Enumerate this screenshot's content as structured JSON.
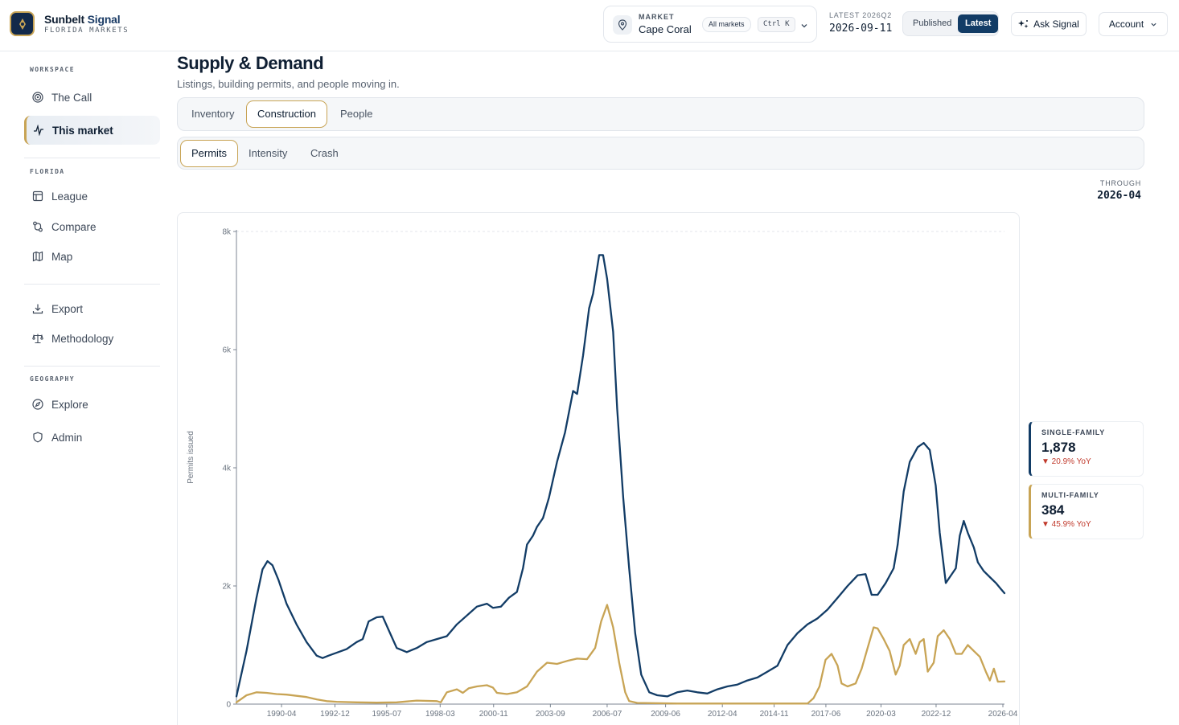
{
  "brand": {
    "name_a": "Sunbelt",
    "name_b": "Signal",
    "sub": "FLORIDA MARKETS"
  },
  "market": {
    "label": "MARKET",
    "value": "Cape Coral",
    "all_markets": "All markets",
    "shortcut": "Ctrl K"
  },
  "latest": {
    "label": "LATEST 2026Q2",
    "value": "2026-09-11"
  },
  "version_toggle": {
    "published": "Published",
    "latest": "Latest",
    "selected": "Latest"
  },
  "ask_label": "Ask Signal",
  "account_label": "Account",
  "sidebar": {
    "sections": [
      {
        "label": "WORKSPACE",
        "items": [
          {
            "label": "The Call",
            "icon": "target-icon"
          },
          {
            "label": "This market",
            "icon": "pulse-icon",
            "active": true
          }
        ]
      },
      {
        "label": "FLORIDA",
        "items": [
          {
            "label": "League",
            "icon": "table-icon"
          },
          {
            "label": "Compare",
            "icon": "compare-icon"
          },
          {
            "label": "Map",
            "icon": "map-icon"
          }
        ]
      },
      {
        "label": "",
        "items": [
          {
            "label": "Export",
            "icon": "download-icon"
          },
          {
            "label": "Methodology",
            "icon": "scale-icon"
          }
        ]
      },
      {
        "label": "GEOGRAPHY",
        "items": [
          {
            "label": "Explore",
            "icon": "compass-icon"
          },
          {
            "label": "Admin",
            "icon": "shield-icon"
          }
        ]
      }
    ]
  },
  "page": {
    "title": "Supply & Demand",
    "subtitle": "Listings, building permits, and people moving in."
  },
  "tabs": [
    "Inventory",
    "Construction",
    "People"
  ],
  "active_tab": "Construction",
  "subtabs": [
    "Permits",
    "Intensity",
    "Crash"
  ],
  "active_subtab": "Permits",
  "through": {
    "label": "THROUGH",
    "value": "2026-04"
  },
  "kpis": [
    {
      "label": "SINGLE-FAMILY",
      "value": "1,878",
      "change": "▼ 20.9% YoY",
      "color": "#123c66"
    },
    {
      "label": "MULTI-FAMILY",
      "value": "384",
      "change": "▼ 45.9% YoY",
      "color": "#c8a455"
    }
  ],
  "chart_data": {
    "type": "line",
    "ylabel": "Permits issued",
    "xlabel": "",
    "ylim": [
      0,
      8000
    ],
    "y_ticks": [
      "0",
      "2k",
      "4k",
      "6k",
      "8k"
    ],
    "x_range": [
      1988.0,
      2026.33
    ],
    "x_ticks": [
      "1990-04",
      "1992-12",
      "1995-07",
      "1998-03",
      "2000-11",
      "2003-09",
      "2006-07",
      "2009-06",
      "2012-04",
      "2014-11",
      "2017-06",
      "2020-03",
      "2022-12",
      "2026-04"
    ],
    "grid": "top-line-only",
    "series": [
      {
        "name": "Single-family",
        "color": "#123c66",
        "points": [
          [
            1988.0,
            130
          ],
          [
            1988.5,
            900
          ],
          [
            1989.0,
            1800
          ],
          [
            1989.3,
            2280
          ],
          [
            1989.55,
            2420
          ],
          [
            1989.8,
            2350
          ],
          [
            1990.1,
            2100
          ],
          [
            1990.5,
            1700
          ],
          [
            1991.0,
            1350
          ],
          [
            1991.5,
            1050
          ],
          [
            1992.0,
            820
          ],
          [
            1992.3,
            780
          ],
          [
            1992.6,
            820
          ],
          [
            1993.0,
            870
          ],
          [
            1993.5,
            930
          ],
          [
            1994.0,
            1050
          ],
          [
            1994.3,
            1100
          ],
          [
            1994.6,
            1400
          ],
          [
            1995.0,
            1470
          ],
          [
            1995.3,
            1480
          ],
          [
            1995.6,
            1250
          ],
          [
            1996.0,
            950
          ],
          [
            1996.5,
            880
          ],
          [
            1997.0,
            950
          ],
          [
            1997.5,
            1050
          ],
          [
            1998.0,
            1100
          ],
          [
            1998.5,
            1150
          ],
          [
            1999.0,
            1350
          ],
          [
            1999.5,
            1500
          ],
          [
            2000.0,
            1650
          ],
          [
            2000.5,
            1700
          ],
          [
            2000.8,
            1630
          ],
          [
            2001.2,
            1650
          ],
          [
            2001.6,
            1800
          ],
          [
            2002.0,
            1900
          ],
          [
            2002.3,
            2300
          ],
          [
            2002.5,
            2700
          ],
          [
            2002.8,
            2850
          ],
          [
            2003.0,
            3000
          ],
          [
            2003.3,
            3150
          ],
          [
            2003.6,
            3500
          ],
          [
            2004.0,
            4100
          ],
          [
            2004.4,
            4600
          ],
          [
            2004.8,
            5300
          ],
          [
            2005.0,
            5250
          ],
          [
            2005.3,
            5900
          ],
          [
            2005.6,
            6700
          ],
          [
            2005.8,
            6950
          ],
          [
            2006.1,
            7600
          ],
          [
            2006.3,
            7600
          ],
          [
            2006.5,
            7200
          ],
          [
            2006.8,
            6300
          ],
          [
            2007.0,
            5000
          ],
          [
            2007.3,
            3500
          ],
          [
            2007.6,
            2300
          ],
          [
            2007.9,
            1200
          ],
          [
            2008.2,
            500
          ],
          [
            2008.6,
            200
          ],
          [
            2009.0,
            150
          ],
          [
            2009.5,
            130
          ],
          [
            2010.0,
            200
          ],
          [
            2010.5,
            230
          ],
          [
            2011.0,
            200
          ],
          [
            2011.5,
            180
          ],
          [
            2012.0,
            250
          ],
          [
            2012.5,
            300
          ],
          [
            2013.0,
            330
          ],
          [
            2013.5,
            400
          ],
          [
            2014.0,
            450
          ],
          [
            2014.5,
            550
          ],
          [
            2015.0,
            650
          ],
          [
            2015.5,
            1000
          ],
          [
            2016.0,
            1200
          ],
          [
            2016.5,
            1350
          ],
          [
            2017.0,
            1450
          ],
          [
            2017.5,
            1600
          ],
          [
            2018.0,
            1800
          ],
          [
            2018.5,
            2000
          ],
          [
            2019.0,
            2180
          ],
          [
            2019.4,
            2200
          ],
          [
            2019.7,
            1850
          ],
          [
            2020.0,
            1850
          ],
          [
            2020.4,
            2050
          ],
          [
            2020.8,
            2300
          ],
          [
            2021.0,
            2700
          ],
          [
            2021.3,
            3600
          ],
          [
            2021.6,
            4100
          ],
          [
            2022.0,
            4350
          ],
          [
            2022.3,
            4420
          ],
          [
            2022.6,
            4300
          ],
          [
            2022.9,
            3700
          ],
          [
            2023.1,
            2900
          ],
          [
            2023.4,
            2050
          ],
          [
            2023.6,
            2150
          ],
          [
            2023.9,
            2300
          ],
          [
            2024.1,
            2850
          ],
          [
            2024.3,
            3100
          ],
          [
            2024.5,
            2900
          ],
          [
            2024.8,
            2650
          ],
          [
            2025.0,
            2400
          ],
          [
            2025.3,
            2250
          ],
          [
            2025.6,
            2150
          ],
          [
            2025.9,
            2050
          ],
          [
            2026.15,
            1950
          ],
          [
            2026.33,
            1878
          ]
        ]
      },
      {
        "name": "Multi-family",
        "color": "#c8a455",
        "points": [
          [
            1988.0,
            30
          ],
          [
            1988.5,
            150
          ],
          [
            1989.0,
            200
          ],
          [
            1989.5,
            190
          ],
          [
            1990.0,
            170
          ],
          [
            1990.5,
            160
          ],
          [
            1991.0,
            140
          ],
          [
            1991.5,
            120
          ],
          [
            1992.0,
            80
          ],
          [
            1992.5,
            50
          ],
          [
            1993.0,
            40
          ],
          [
            1994.0,
            30
          ],
          [
            1995.0,
            25
          ],
          [
            1996.0,
            30
          ],
          [
            1997.0,
            60
          ],
          [
            1998.0,
            50
          ],
          [
            1998.2,
            30
          ],
          [
            1998.5,
            200
          ],
          [
            1999.0,
            250
          ],
          [
            1999.3,
            190
          ],
          [
            1999.6,
            270
          ],
          [
            2000.0,
            300
          ],
          [
            2000.5,
            320
          ],
          [
            2000.8,
            280
          ],
          [
            2001.0,
            190
          ],
          [
            2001.5,
            170
          ],
          [
            2002.0,
            200
          ],
          [
            2002.5,
            300
          ],
          [
            2003.0,
            550
          ],
          [
            2003.5,
            700
          ],
          [
            2004.0,
            680
          ],
          [
            2004.5,
            730
          ],
          [
            2005.0,
            770
          ],
          [
            2005.5,
            760
          ],
          [
            2005.9,
            950
          ],
          [
            2006.2,
            1400
          ],
          [
            2006.5,
            1680
          ],
          [
            2006.8,
            1300
          ],
          [
            2007.1,
            700
          ],
          [
            2007.4,
            200
          ],
          [
            2007.6,
            50
          ],
          [
            2008.0,
            20
          ],
          [
            2010.0,
            10
          ],
          [
            2015.0,
            10
          ],
          [
            2016.5,
            10
          ],
          [
            2016.8,
            100
          ],
          [
            2017.1,
            300
          ],
          [
            2017.4,
            750
          ],
          [
            2017.7,
            850
          ],
          [
            2018.0,
            650
          ],
          [
            2018.2,
            350
          ],
          [
            2018.5,
            300
          ],
          [
            2018.9,
            350
          ],
          [
            2019.2,
            600
          ],
          [
            2019.5,
            950
          ],
          [
            2019.8,
            1300
          ],
          [
            2020.0,
            1280
          ],
          [
            2020.3,
            1100
          ],
          [
            2020.6,
            900
          ],
          [
            2020.9,
            500
          ],
          [
            2021.1,
            650
          ],
          [
            2021.3,
            1000
          ],
          [
            2021.6,
            1100
          ],
          [
            2021.9,
            850
          ],
          [
            2022.1,
            1050
          ],
          [
            2022.3,
            1100
          ],
          [
            2022.5,
            550
          ],
          [
            2022.8,
            700
          ],
          [
            2023.0,
            1150
          ],
          [
            2023.3,
            1250
          ],
          [
            2023.6,
            1100
          ],
          [
            2023.9,
            850
          ],
          [
            2024.2,
            850
          ],
          [
            2024.5,
            1000
          ],
          [
            2024.8,
            900
          ],
          [
            2025.1,
            800
          ],
          [
            2025.4,
            550
          ],
          [
            2025.6,
            400
          ],
          [
            2025.8,
            600
          ],
          [
            2026.0,
            380
          ],
          [
            2026.33,
            384
          ]
        ]
      }
    ]
  }
}
